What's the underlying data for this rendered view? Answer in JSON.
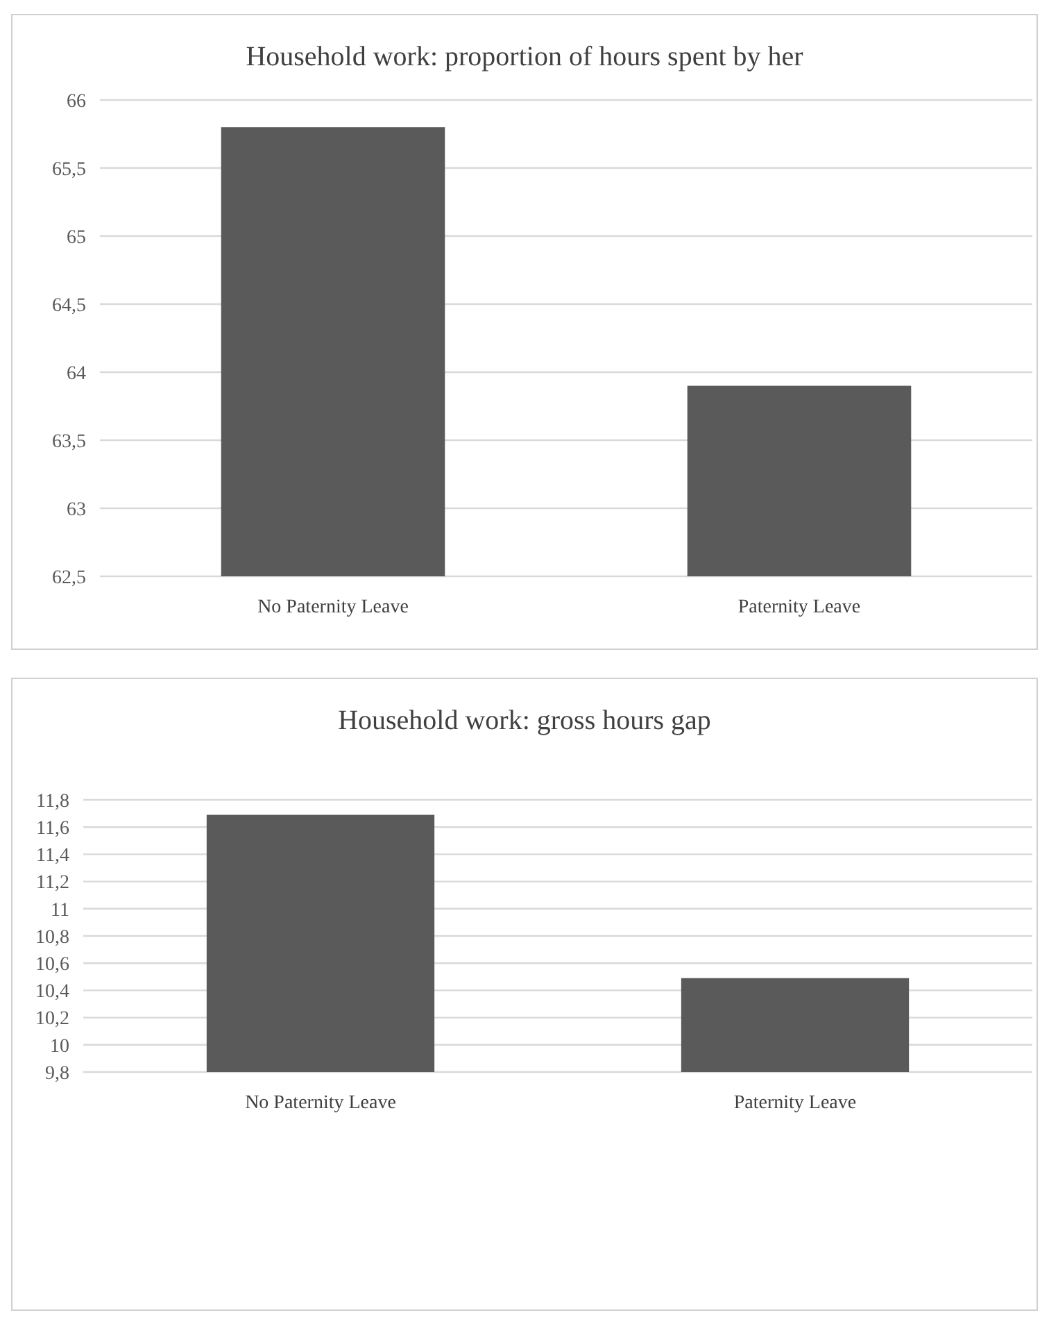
{
  "chart_data": [
    {
      "type": "bar",
      "title": "Household work: proportion of hours spent by her",
      "categories": [
        "No Paternity Leave",
        "Paternity Leave"
      ],
      "values": [
        65.8,
        63.9
      ],
      "color": "#5a5a5a",
      "ylim": [
        62.5,
        66
      ],
      "yticks": [
        {
          "value": 62.5,
          "label": "62,5"
        },
        {
          "value": 63,
          "label": "63"
        },
        {
          "value": 63.5,
          "label": "63,5"
        },
        {
          "value": 64,
          "label": "64"
        },
        {
          "value": 64.5,
          "label": "64,5"
        },
        {
          "value": 65,
          "label": "65"
        },
        {
          "value": 65.5,
          "label": "65,5"
        },
        {
          "value": 66,
          "label": "66"
        }
      ],
      "grid": "y"
    },
    {
      "type": "bar",
      "title": "Household work: gross hours gap",
      "categories": [
        "No Paternity Leave",
        "Paternity Leave"
      ],
      "values": [
        11.69,
        10.49
      ],
      "color": "#5a5a5a",
      "ylim": [
        9.8,
        11.8
      ],
      "yticks": [
        {
          "value": 9.8,
          "label": "9,8"
        },
        {
          "value": 10,
          "label": "10"
        },
        {
          "value": 10.2,
          "label": "10,2"
        },
        {
          "value": 10.4,
          "label": "10,4"
        },
        {
          "value": 10.6,
          "label": "10,6"
        },
        {
          "value": 10.8,
          "label": "10,8"
        },
        {
          "value": 11,
          "label": "11"
        },
        {
          "value": 11.2,
          "label": "11,2"
        },
        {
          "value": 11.4,
          "label": "11,4"
        },
        {
          "value": 11.6,
          "label": "11,6"
        },
        {
          "value": 11.8,
          "label": "11,8"
        }
      ],
      "grid": "y"
    }
  ]
}
